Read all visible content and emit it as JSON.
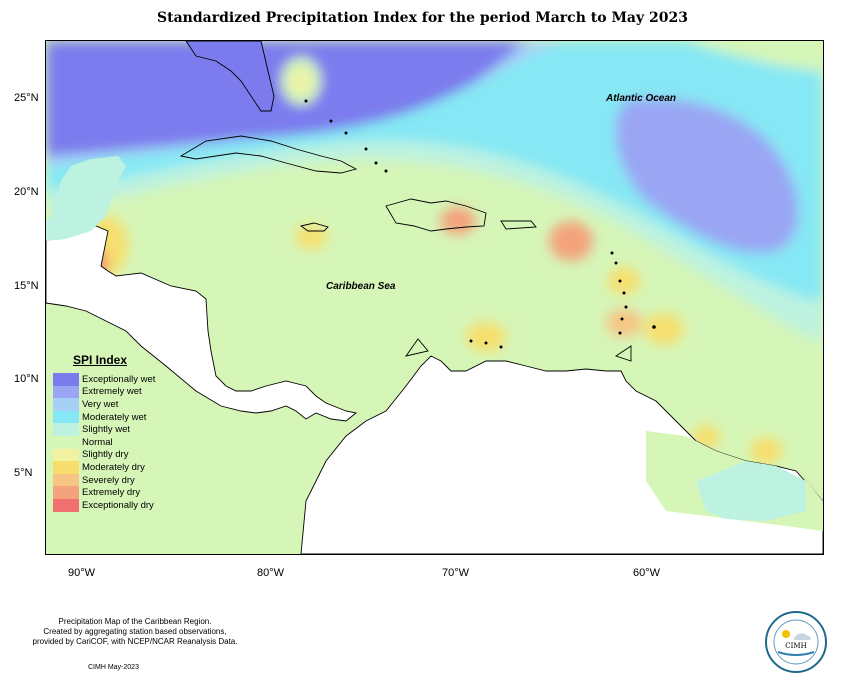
{
  "title": "Standardized Precipitation Index for the period March to May 2023",
  "latitude_labels": [
    "25°N",
    "20°N",
    "15°N",
    "10°N",
    "5°N"
  ],
  "longitude_labels": [
    "90°W",
    "80°W",
    "70°W",
    "60°W"
  ],
  "map_labels": {
    "atlantic": "Atlantic Ocean",
    "caribbean": "Caribbean Sea"
  },
  "legend": {
    "title": "SPI Index",
    "items": [
      {
        "label": "Exceptionally wet",
        "color": "#7b7bee"
      },
      {
        "label": "Extremely wet",
        "color": "#9aa6f4"
      },
      {
        "label": "Very wet",
        "color": "#a7d0f7"
      },
      {
        "label": "Moderately wet",
        "color": "#86e8f4"
      },
      {
        "label": "Slightly wet",
        "color": "#bdf2e0"
      },
      {
        "label": "Normal",
        "color": "#d6f6b8"
      },
      {
        "label": "Slightly dry",
        "color": "#f2f2a2"
      },
      {
        "label": "Moderately dry",
        "color": "#f7df6e"
      },
      {
        "label": "Severely dry",
        "color": "#f7c583"
      },
      {
        "label": "Extremely dry",
        "color": "#f4a37c"
      },
      {
        "label": "Exceptionally dry",
        "color": "#f07070"
      }
    ]
  },
  "footer": {
    "line1": "Precipitation Map of the Caribbean Region.",
    "line2": "Created by aggregating station based observations,",
    "line3": "provided by CariCOF, with NCEP/NCAR Reanalysis Data.",
    "credit": "CIMH May-2023"
  },
  "logo": {
    "text": "CIMH"
  }
}
